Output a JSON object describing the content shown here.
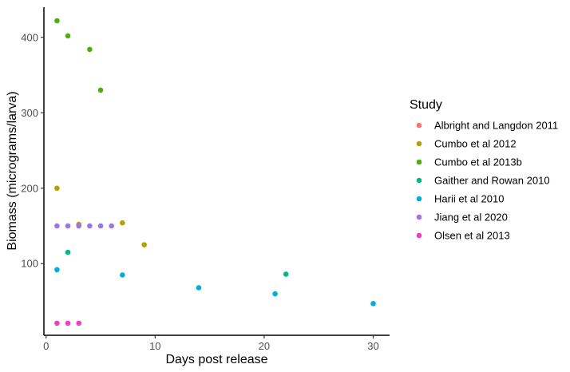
{
  "chart_data": {
    "type": "scatter",
    "title": "",
    "xlabel": "Days post release",
    "ylabel": "Biomass (micrograms/larva)",
    "xlim": [
      -0.2,
      31.5
    ],
    "ylim": [
      5,
      440
    ],
    "x_ticks": [
      0,
      10,
      20,
      30
    ],
    "y_ticks": [
      100,
      200,
      300,
      400
    ],
    "grid": false,
    "legend": {
      "title": "Study",
      "placement": "right"
    },
    "series": [
      {
        "name": "Albright and Langdon 2011",
        "color": "#F8766D",
        "points": []
      },
      {
        "name": "Cumbo et al 2012",
        "color": "#B79F00",
        "points": [
          {
            "x": 1,
            "y": 200
          },
          {
            "x": 3,
            "y": 152
          },
          {
            "x": 7,
            "y": 154
          },
          {
            "x": 9,
            "y": 125
          }
        ]
      },
      {
        "name": "Cumbo et al 2013b",
        "color": "#4DAF0B",
        "points": [
          {
            "x": 1,
            "y": 422
          },
          {
            "x": 2,
            "y": 402
          },
          {
            "x": 4,
            "y": 384
          },
          {
            "x": 5,
            "y": 330
          }
        ]
      },
      {
        "name": "Gaither and Rowan 2010",
        "color": "#00BA83",
        "points": [
          {
            "x": 2,
            "y": 115
          },
          {
            "x": 22,
            "y": 86
          }
        ]
      },
      {
        "name": "Harii et al 2010",
        "color": "#00AEDB",
        "points": [
          {
            "x": 1,
            "y": 92
          },
          {
            "x": 7,
            "y": 85
          },
          {
            "x": 14,
            "y": 68
          },
          {
            "x": 21,
            "y": 60
          },
          {
            "x": 30,
            "y": 47
          }
        ]
      },
      {
        "name": "Jiang et al 2020",
        "color": "#9B74E8",
        "points": [
          {
            "x": 1,
            "y": 150
          },
          {
            "x": 2,
            "y": 150
          },
          {
            "x": 3,
            "y": 150
          },
          {
            "x": 4,
            "y": 150
          },
          {
            "x": 5,
            "y": 150
          },
          {
            "x": 6,
            "y": 150
          }
        ]
      },
      {
        "name": "Olsen et al 2013",
        "color": "#F03FC2",
        "points": [
          {
            "x": 1,
            "y": 21
          },
          {
            "x": 2,
            "y": 21
          },
          {
            "x": 3,
            "y": 21
          }
        ]
      }
    ]
  }
}
